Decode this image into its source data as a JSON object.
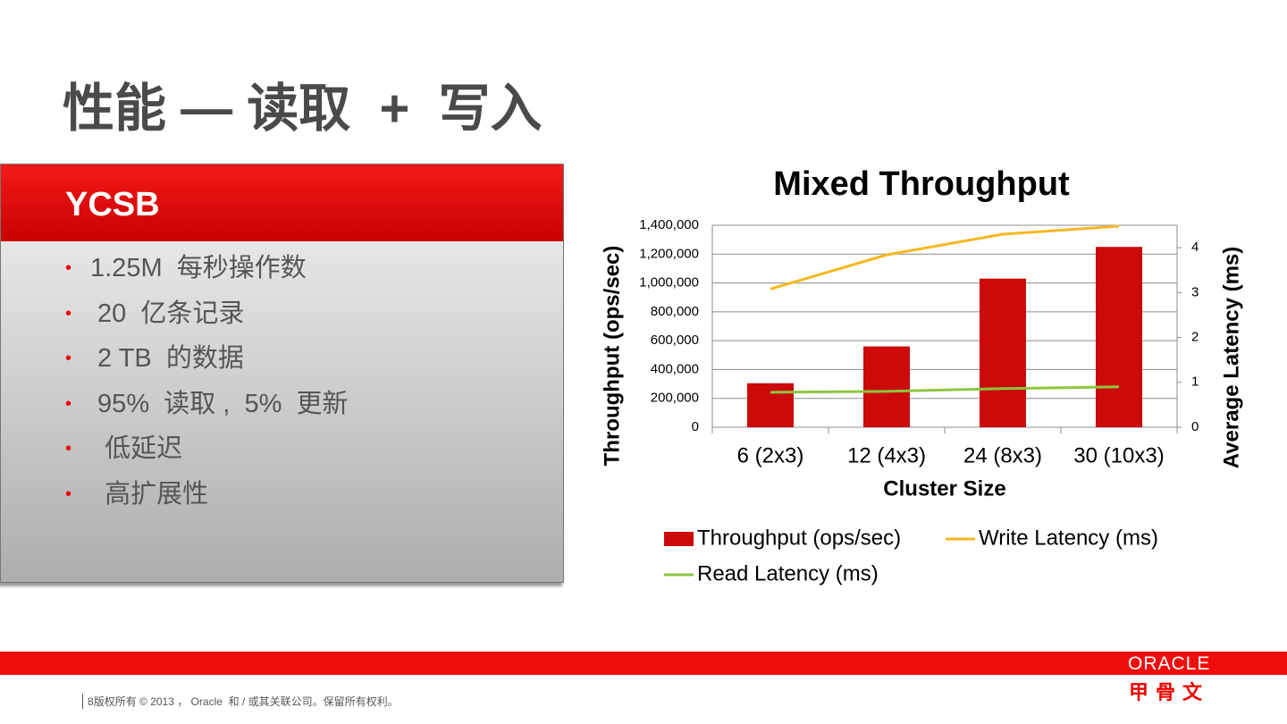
{
  "title": "性能 — 读取  +  写入",
  "panel": {
    "heading": "YCSB",
    "bullets": [
      "1.25M  每秒操作数",
      " 20  亿条记录",
      " 2 TB  的数据",
      " 95%  读取 ,  5%  更新",
      "  低延迟",
      "  高扩展性"
    ]
  },
  "chart_data": {
    "type": "bar",
    "title": "Mixed Throughput",
    "xlabel": "Cluster Size",
    "ylabel": "Throughput (ops/sec)",
    "y2label": "Average Latency (ms)",
    "categories": [
      "6 (2x3)",
      "12 (4x3)",
      "24 (8x3)",
      "30 (10x3)"
    ],
    "series": [
      {
        "name": "Throughput (ops/sec)",
        "type": "bar",
        "color": "#cc0a0a",
        "values": [
          305000,
          560000,
          1030000,
          1250000
        ]
      },
      {
        "name": "Write Latency (ms)",
        "type": "line",
        "axis": "y2",
        "color": "#f5b820",
        "values": [
          3.08,
          3.84,
          4.3,
          4.48
        ]
      },
      {
        "name": "Read Latency (ms)",
        "type": "line",
        "axis": "y2",
        "color": "#8cc63f",
        "values": [
          0.78,
          0.8,
          0.86,
          0.9
        ]
      }
    ],
    "ylim": [
      0,
      1400000
    ],
    "yticks": [
      0,
      {
        "value": 200000,
        "label": "200,000"
      },
      {
        "value": 400000,
        "label": "400,000"
      },
      {
        "value": 600000,
        "label": "600,000"
      },
      {
        "value": 800000,
        "label": "800,000"
      },
      {
        "value": 1000000,
        "label": "1,000,000"
      },
      {
        "value": 1200000,
        "label": "1,200,000"
      },
      {
        "value": 1400000,
        "label": "1,400,000"
      }
    ],
    "y2lim": [
      0,
      4.5
    ],
    "y2ticks": [
      0,
      1,
      2,
      3,
      4
    ],
    "grid": true
  },
  "footer": {
    "page": "8",
    "text": "版权所有 © 2013 ， Oracle  和 / 或其关联公司。保留所有权利。"
  },
  "logo": {
    "text": "ORACLE",
    "cn": "甲骨文"
  }
}
